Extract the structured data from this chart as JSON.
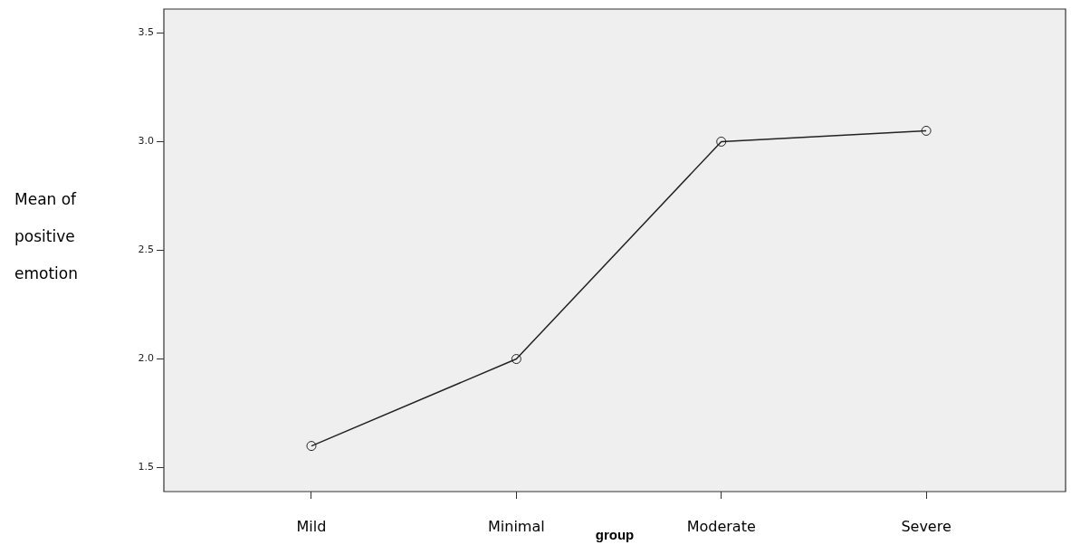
{
  "chart_data": {
    "type": "line",
    "xlabel": "group",
    "ylabel": "Mean of positive emotion",
    "categories": [
      "Mild",
      "Minimal",
      "Moderate",
      "Severe"
    ],
    "series": [
      {
        "color": "#222222",
        "values": [
          1.6,
          2.0,
          3.0,
          3.05
        ]
      }
    ],
    "ylim": [
      1.39,
      3.61
    ],
    "yticks": [
      1.5,
      {
        "value": 2,
        "label": "2.0"
      },
      2.5,
      {
        "value": 3,
        "label": "3.0"
      },
      3.5
    ],
    "marker": "circle",
    "line_style": "solid",
    "grid": false,
    "legend": false
  }
}
